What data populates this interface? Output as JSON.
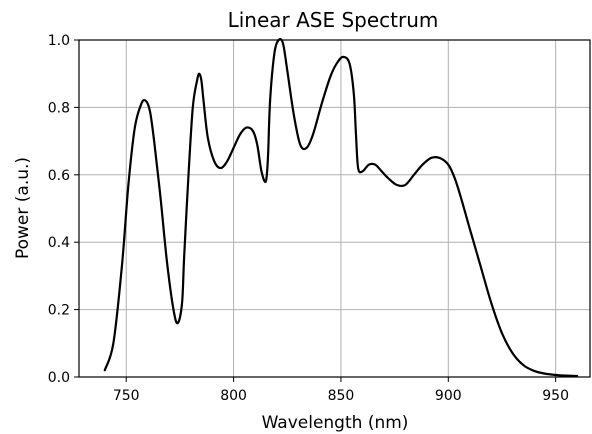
{
  "chart_data": {
    "type": "line",
    "title": "Linear ASE Spectrum",
    "xlabel": "Wavelength (nm)",
    "ylabel": "Power (a.u.)",
    "xlim": [
      728,
      966
    ],
    "ylim": [
      0.0,
      1.0
    ],
    "grid": true,
    "line_color": "#000000",
    "grid_color": "#b0b0b0",
    "xticks": [
      750,
      800,
      850,
      900,
      950
    ],
    "xtick_labels": [
      "750",
      "800",
      "850",
      "900",
      "950"
    ],
    "yticks": [
      0.0,
      0.2,
      0.4,
      0.6,
      0.8,
      1.0
    ],
    "ytick_labels": [
      "0.0",
      "0.2",
      "0.4",
      "0.6",
      "0.8",
      "1.0"
    ],
    "series": [
      {
        "x": [
          740,
          744,
          748,
          751,
          754,
          757,
          759,
          761,
          763,
          766,
          769,
          772,
          774,
          776,
          777,
          779,
          781,
          783,
          784,
          785,
          786,
          788,
          791,
          794,
          797,
          800,
          803,
          806,
          809,
          811,
          813,
          815,
          816,
          817,
          819,
          821,
          823,
          825,
          828,
          831,
          834,
          837,
          841,
          845,
          848,
          851,
          854,
          856,
          857,
          858,
          860,
          863,
          866,
          869,
          872,
          876,
          880,
          884,
          888,
          892,
          896,
          900,
          903,
          906,
          910,
          915,
          920,
          925,
          930,
          935,
          940,
          945,
          950,
          955,
          960
        ],
        "y": [
          0.02,
          0.1,
          0.33,
          0.57,
          0.74,
          0.81,
          0.82,
          0.79,
          0.7,
          0.53,
          0.34,
          0.2,
          0.16,
          0.22,
          0.36,
          0.6,
          0.8,
          0.88,
          0.9,
          0.88,
          0.82,
          0.71,
          0.64,
          0.62,
          0.64,
          0.68,
          0.72,
          0.74,
          0.73,
          0.69,
          0.61,
          0.58,
          0.65,
          0.82,
          0.96,
          1.0,
          0.99,
          0.91,
          0.78,
          0.69,
          0.68,
          0.72,
          0.81,
          0.89,
          0.93,
          0.95,
          0.93,
          0.84,
          0.72,
          0.62,
          0.61,
          0.63,
          0.63,
          0.61,
          0.59,
          0.57,
          0.57,
          0.6,
          0.63,
          0.65,
          0.65,
          0.63,
          0.59,
          0.53,
          0.44,
          0.33,
          0.22,
          0.13,
          0.07,
          0.035,
          0.018,
          0.01,
          0.006,
          0.004,
          0.003
        ]
      }
    ]
  }
}
